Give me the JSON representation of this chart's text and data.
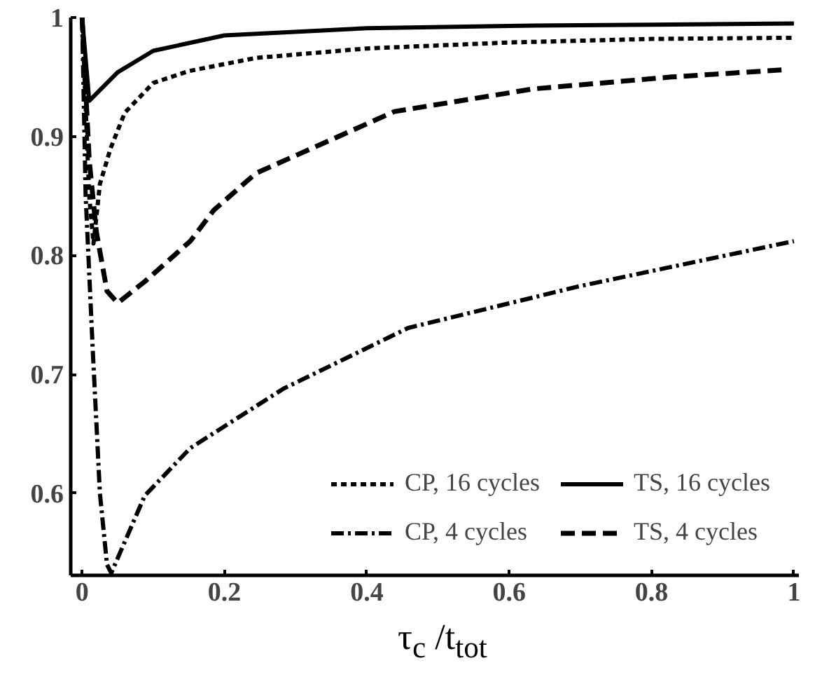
{
  "chart_data": {
    "type": "line",
    "xlabel": "τ$_{c}$ /t$_{tot}$",
    "xlim": [
      -0.016,
      1.007
    ],
    "ylim": [
      0.531,
      1.0
    ],
    "xticks": [
      0,
      0.2,
      0.4,
      0.6,
      0.8,
      1
    ],
    "yticks": [
      0.6,
      0.7,
      0.8,
      0.9,
      1
    ],
    "grid": false,
    "legend": "bottom right",
    "series": [
      {
        "name": "CP, 16 cycles",
        "color": "#000000",
        "line_style": "dotted",
        "x": [
          0,
          0.01,
          0.016,
          0.025,
          0.04,
          0.06,
          0.1,
          0.15,
          0.244,
          0.4,
          0.6,
          0.8,
          1
        ],
        "values": [
          1,
          0.85,
          0.81,
          0.86,
          0.89,
          0.92,
          0.945,
          0.955,
          0.966,
          0.974,
          0.979,
          0.982,
          0.983
        ]
      },
      {
        "name": "TS, 16 cycles",
        "color": "#000000",
        "line_style": "solid",
        "x": [
          0,
          0.01,
          0.05,
          0.1,
          0.2,
          0.4,
          0.6,
          0.8,
          1
        ],
        "values": [
          1,
          0.93,
          0.954,
          0.972,
          0.985,
          0.991,
          0.993,
          0.994,
          0.995
        ]
      },
      {
        "name": "CP, 4 cycles",
        "color": "#000000",
        "line_style": "dashdot",
        "x": [
          0,
          0.005,
          0.015,
          0.025,
          0.035,
          0.041,
          0.088,
          0.152,
          0.283,
          0.458,
          0.698,
          1
        ],
        "values": [
          1,
          0.85,
          0.72,
          0.6,
          0.54,
          0.533,
          0.598,
          0.638,
          0.688,
          0.739,
          0.774,
          0.812
        ]
      },
      {
        "name": "TS, 4 cycles",
        "color": "#000000",
        "line_style": "dashed",
        "x": [
          0,
          0.01,
          0.02,
          0.035,
          0.05,
          0.088,
          0.152,
          0.185,
          0.244,
          0.439,
          0.634,
          0.828,
          0.984
        ],
        "values": [
          1,
          0.88,
          0.82,
          0.77,
          0.76,
          0.778,
          0.812,
          0.838,
          0.869,
          0.921,
          0.94,
          0.95,
          0.956
        ]
      }
    ]
  }
}
